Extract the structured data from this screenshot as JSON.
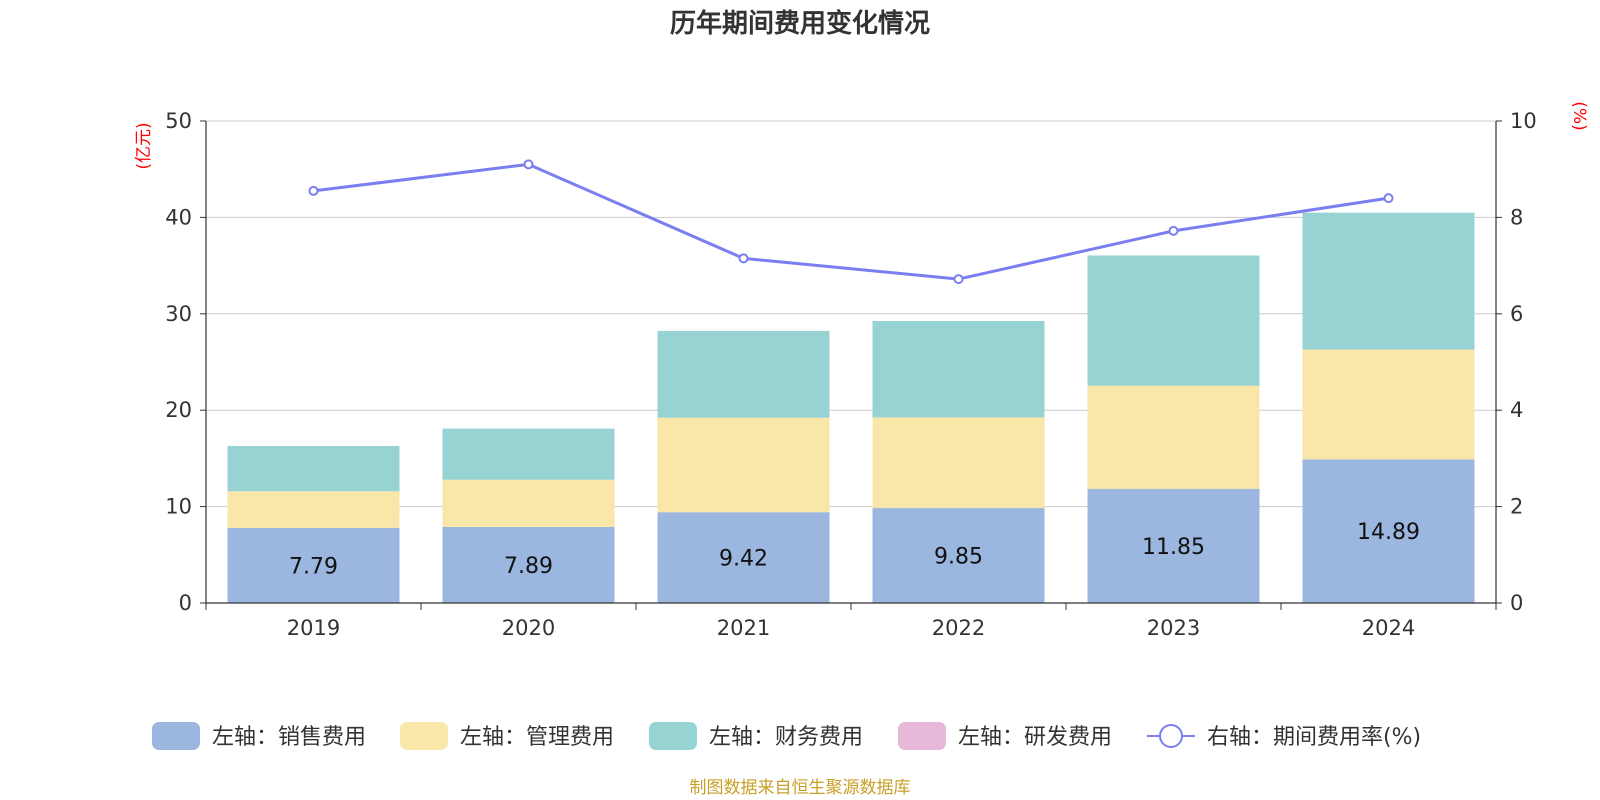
{
  "title": "历年期间费用变化情况",
  "source_note": "制图数据来自恒生聚源数据库",
  "colors": {
    "sales": "#9bb7e0",
    "admin": "#f8e7a8",
    "finance": "#97d3d3",
    "rnd": "#e8b8d8",
    "rate": "#7a7ef0",
    "unit_label": "#ff0000",
    "grid": "#cccccc",
    "axis": "#333333",
    "source": "#c8a028"
  },
  "chart_data": {
    "type": "bar",
    "stacked": true,
    "categories": [
      "2019",
      "2020",
      "2021",
      "2022",
      "2023",
      "2024"
    ],
    "series": [
      {
        "key": "sales",
        "name": "左轴：销售费用",
        "axis": "left",
        "values": [
          7.79,
          7.89,
          9.42,
          9.85,
          11.85,
          14.89
        ],
        "show_labels": true
      },
      {
        "key": "admin",
        "name": "左轴：管理费用",
        "axis": "left",
        "values": [
          3.8,
          4.9,
          9.8,
          9.4,
          10.7,
          11.4
        ]
      },
      {
        "key": "finance",
        "name": "左轴：财务费用",
        "axis": "left",
        "values": [
          4.7,
          5.3,
          9.0,
          10.0,
          13.5,
          14.2
        ]
      },
      {
        "key": "rnd",
        "name": "左轴：研发费用",
        "axis": "left",
        "values": [
          0,
          0,
          0,
          0,
          0,
          0
        ]
      },
      {
        "key": "rate",
        "name": "右轴：期间费用率(%)",
        "axis": "right",
        "type": "line",
        "values": [
          8.55,
          9.1,
          7.15,
          6.72,
          7.72,
          8.4
        ]
      }
    ],
    "left_axis": {
      "unit": "(亿元)",
      "ylim": [
        0,
        50
      ],
      "ticks": [
        0,
        10,
        20,
        30,
        40,
        50
      ]
    },
    "right_axis": {
      "unit": "(%)",
      "ylim": [
        0,
        10
      ],
      "ticks": [
        0,
        2,
        4,
        6,
        8,
        10
      ]
    },
    "grid": true,
    "legend_position": "bottom"
  }
}
